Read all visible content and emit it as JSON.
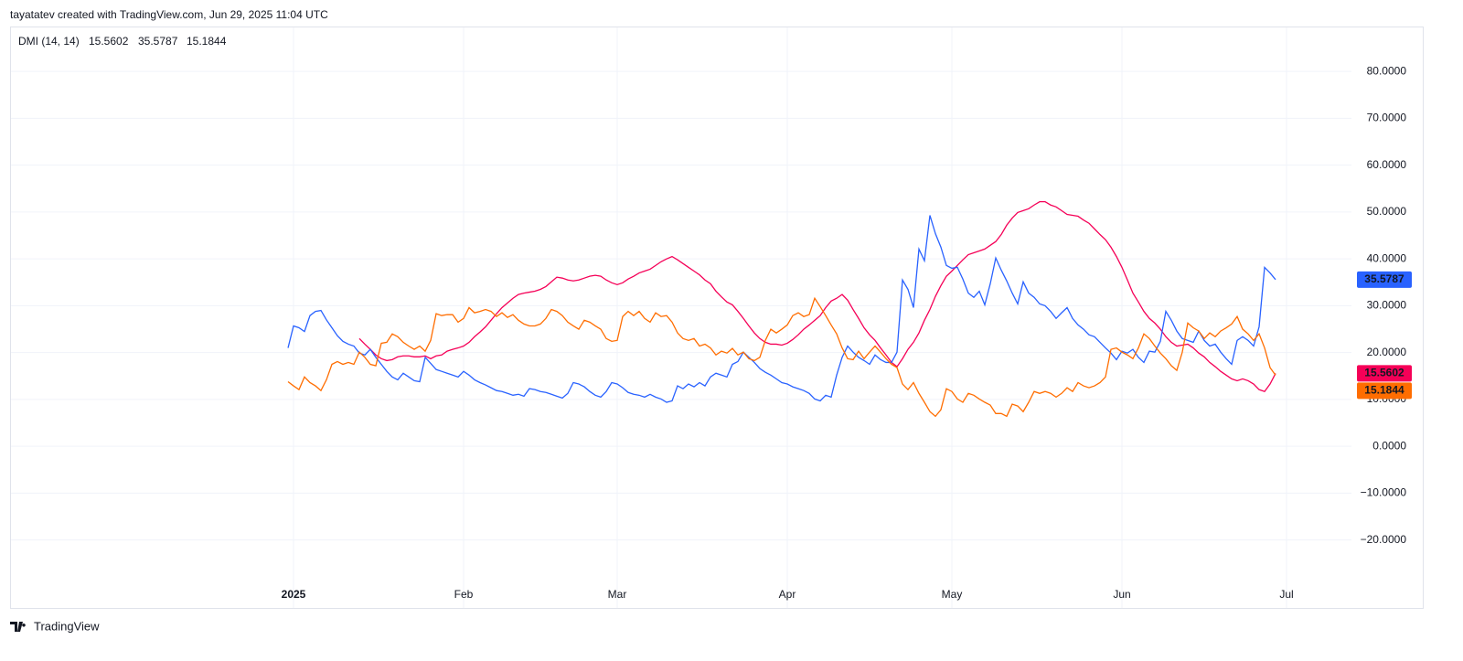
{
  "header": "tayatatev created with TradingView.com, Jun 29, 2025 11:04 UTC",
  "footer": "TradingView",
  "chart_data": {
    "type": "line",
    "indicator": "DMI (14, 14)",
    "grid": true,
    "categories": [
      null,
      "2025",
      null,
      null,
      null,
      null,
      null,
      null,
      null,
      null,
      null,
      null,
      null,
      null,
      null,
      null,
      null,
      null,
      null,
      null,
      null,
      null,
      null,
      null,
      null,
      null,
      null,
      null,
      null,
      null,
      null,
      null,
      "Feb",
      null,
      null,
      null,
      null,
      null,
      null,
      null,
      null,
      null,
      null,
      null,
      null,
      null,
      null,
      null,
      null,
      null,
      null,
      null,
      null,
      null,
      null,
      null,
      null,
      null,
      null,
      null,
      "Mar",
      null,
      null,
      null,
      null,
      null,
      null,
      null,
      null,
      null,
      null,
      null,
      null,
      null,
      null,
      null,
      null,
      null,
      null,
      null,
      null,
      null,
      null,
      null,
      null,
      null,
      null,
      null,
      null,
      null,
      null,
      "Apr",
      null,
      null,
      null,
      null,
      null,
      null,
      null,
      null,
      null,
      null,
      null,
      null,
      null,
      null,
      null,
      null,
      null,
      null,
      null,
      null,
      null,
      null,
      null,
      null,
      null,
      null,
      null,
      null,
      null,
      "May",
      null,
      null,
      null,
      null,
      null,
      null,
      null,
      null,
      null,
      null,
      null,
      null,
      null,
      null,
      null,
      null,
      null,
      null,
      null,
      null,
      null,
      null,
      null,
      null,
      null,
      null,
      null,
      null,
      null,
      null,
      "Jun",
      null,
      null,
      null,
      null,
      null,
      null,
      null,
      null,
      null,
      null,
      null,
      null,
      null,
      null,
      null,
      null,
      null,
      null,
      null,
      null,
      null,
      null,
      null,
      null,
      null,
      null,
      null,
      null,
      null,
      "Jul"
    ],
    "series": [
      {
        "color": "#f50057",
        "values": [
          null,
          null,
          null,
          null,
          null,
          null,
          null,
          null,
          null,
          null,
          null,
          null,
          null,
          23,
          21.8,
          20.7,
          19.5,
          18.7,
          18.3,
          18.5,
          19.1,
          19.3,
          19.3,
          19.1,
          19.1,
          19.3,
          18.7,
          19.3,
          19.5,
          20.3,
          20.7,
          21,
          21.4,
          22.2,
          23.4,
          24.4,
          25.5,
          26.9,
          28.3,
          29.6,
          30.6,
          31.6,
          32.4,
          32.7,
          32.9,
          33.1,
          33.5,
          34.1,
          35.1,
          36.1,
          35.9,
          35.5,
          35.3,
          35.5,
          35.9,
          36.3,
          36.5,
          36.3,
          35.5,
          34.9,
          34.5,
          34.9,
          35.7,
          36.3,
          37,
          37.4,
          37.8,
          38.6,
          39.4,
          40,
          40.5,
          39.8,
          39,
          38.2,
          37.4,
          36.6,
          35.5,
          34.7,
          33.1,
          31.9,
          30.8,
          30.2,
          28.8,
          27.3,
          25.7,
          24.2,
          23,
          22.2,
          21.8,
          21.8,
          21.6,
          22,
          22.8,
          23.8,
          25,
          25.9,
          26.9,
          27.9,
          29.6,
          31,
          31.6,
          32.4,
          31.2,
          29.2,
          27.3,
          25.3,
          23.8,
          22.6,
          21,
          19.5,
          17.9,
          17,
          18.7,
          20.7,
          22.2,
          24.2,
          26.9,
          29.2,
          32,
          34.3,
          36.3,
          37.4,
          38.6,
          39.8,
          40.9,
          41.3,
          41.7,
          42.1,
          42.9,
          43.7,
          45.2,
          47.2,
          48.7,
          49.9,
          50.3,
          50.7,
          51.5,
          52.2,
          52.2,
          51.5,
          51.1,
          50.3,
          49.5,
          49.3,
          49.1,
          48.3,
          47.6,
          46.4,
          45.2,
          44.1,
          42.5,
          40.5,
          38.2,
          35.5,
          32.7,
          30.8,
          28.8,
          27.3,
          26.3,
          25,
          23.4,
          22.2,
          21.4,
          21.6,
          21.8,
          21,
          19.9,
          19.1,
          17.9,
          17,
          16,
          15.2,
          14.4,
          14,
          14.4,
          14,
          13.3,
          12.1,
          11.7,
          13.3,
          15.5602,
          null,
          null
        ]
      },
      {
        "color": "#2962ff",
        "values": [
          21,
          25.7,
          25.3,
          24.5,
          27.9,
          28.8,
          29,
          27,
          25.3,
          23.6,
          22.4,
          21.8,
          21.4,
          19.9,
          19.5,
          20.7,
          19,
          17.5,
          16,
          14.8,
          14.2,
          15.6,
          14.8,
          14,
          13.8,
          19,
          17.7,
          16.4,
          16,
          15.6,
          15.2,
          14.8,
          16,
          15.2,
          14.2,
          13.6,
          13.1,
          12.5,
          11.9,
          11.7,
          11.3,
          10.9,
          11.1,
          10.7,
          12.3,
          12.1,
          11.7,
          11.5,
          11.1,
          10.7,
          10.3,
          11.3,
          13.6,
          13.3,
          12.7,
          11.7,
          10.9,
          10.5,
          11.7,
          13.6,
          13.3,
          12.5,
          11.5,
          11.1,
          10.9,
          10.5,
          11.1,
          10.5,
          10.1,
          9.4,
          9.7,
          12.9,
          12.3,
          13.3,
          12.7,
          13.6,
          12.9,
          14.8,
          15.6,
          15.2,
          14.8,
          17.5,
          18.1,
          20.1,
          19,
          17.9,
          16.6,
          15.8,
          15.2,
          14.4,
          13.6,
          13.3,
          12.7,
          12.3,
          11.9,
          11.3,
          10.1,
          9.7,
          10.9,
          10.5,
          15.2,
          19,
          21.4,
          20.1,
          19,
          18.3,
          17.5,
          19.5,
          18.5,
          17.9,
          17.9,
          20.1,
          35.5,
          33.5,
          29.6,
          42.1,
          39.6,
          49.3,
          45.4,
          42.5,
          38.6,
          38,
          38.2,
          35.7,
          32.7,
          31.8,
          33.1,
          30.2,
          34.7,
          40.2,
          37.6,
          35.3,
          32.7,
          30.4,
          35.1,
          32.7,
          31.8,
          30.4,
          30,
          28.8,
          27.3,
          28.5,
          29.6,
          27.3,
          25.9,
          25,
          23.8,
          23.4,
          22.2,
          21,
          19.9,
          18.5,
          20.3,
          19.9,
          20.7,
          19,
          17.9,
          20.3,
          20.1,
          22.4,
          28.8,
          26.9,
          24.6,
          23,
          22.6,
          22.2,
          24.6,
          22.6,
          21.4,
          21.8,
          20.1,
          18.7,
          17.5,
          22.6,
          23.4,
          22.6,
          21.4,
          25.5,
          38.2,
          37,
          35.5787,
          null,
          null
        ]
      },
      {
        "color": "#ff6d00",
        "values": [
          13.8,
          12.9,
          12.1,
          14.8,
          13.6,
          12.9,
          11.9,
          14.2,
          17.5,
          18.1,
          17.5,
          17.9,
          17.5,
          20.1,
          19,
          17.5,
          17.2,
          22,
          22.2,
          24,
          23.4,
          22.2,
          21.4,
          20.7,
          21.4,
          20.3,
          22.6,
          28.3,
          27.9,
          28.1,
          28.1,
          26.5,
          27.3,
          29.6,
          28.5,
          28.8,
          29.2,
          28.8,
          27.7,
          28.5,
          27.5,
          28.1,
          26.9,
          26.1,
          25.7,
          25.7,
          26.1,
          27.3,
          29.2,
          28.8,
          27.9,
          26.5,
          25.7,
          25,
          26.9,
          26.5,
          25.7,
          25,
          23,
          22.4,
          22.6,
          27.7,
          28.8,
          27.9,
          28.8,
          27.3,
          26.5,
          28.5,
          27.7,
          27.9,
          26.5,
          24.2,
          23,
          22.6,
          23,
          21.4,
          21.8,
          21,
          19.5,
          20.3,
          19.9,
          20.9,
          19.5,
          20.1,
          18.7,
          18.3,
          19,
          22.6,
          25,
          24.2,
          25,
          25.9,
          27.9,
          28.5,
          27.7,
          28.1,
          31.6,
          29.8,
          27.9,
          25.9,
          24,
          21,
          18.7,
          18.5,
          20.3,
          18.7,
          20.1,
          21.4,
          20.1,
          18.7,
          17.5,
          16.8,
          13.3,
          12.1,
          13.6,
          11.3,
          9.4,
          7.4,
          6.4,
          7.8,
          12.3,
          11.7,
          10.1,
          9.4,
          11.3,
          10.9,
          10.1,
          9.4,
          8.8,
          7,
          7,
          6.4,
          9,
          8.6,
          7.4,
          9.4,
          11.7,
          11.3,
          11.7,
          11.3,
          10.5,
          11.3,
          12.5,
          11.7,
          13.6,
          12.9,
          12.5,
          12.9,
          13.6,
          14.8,
          20.7,
          21,
          20.1,
          19.5,
          18.7,
          21,
          24,
          23,
          21.4,
          19.9,
          18.7,
          17.2,
          16.2,
          20.1,
          26.3,
          25.3,
          24.6,
          23,
          24.2,
          23.4,
          24.6,
          25.3,
          26.1,
          27.7,
          25,
          24,
          22.6,
          24,
          21,
          16.8,
          15.1844,
          null,
          null
        ]
      }
    ],
    "ylim": [
      -34.5,
      89.4
    ],
    "yticks": [
      {
        "value": 80,
        "label": "80.0000"
      },
      {
        "value": 70,
        "label": "70.0000"
      },
      {
        "value": 60,
        "label": "60.0000"
      },
      {
        "value": 50,
        "label": "50.0000"
      },
      {
        "value": 40,
        "label": "40.0000"
      },
      {
        "value": 30,
        "label": "30.0000"
      },
      {
        "value": 20,
        "label": "20.0000"
      },
      {
        "value": 10,
        "label": "10.0000"
      },
      {
        "value": 0,
        "label": "0.0000"
      },
      {
        "value": -10,
        "label": "−10.0000"
      },
      {
        "value": -20,
        "label": "−20.0000"
      }
    ]
  }
}
